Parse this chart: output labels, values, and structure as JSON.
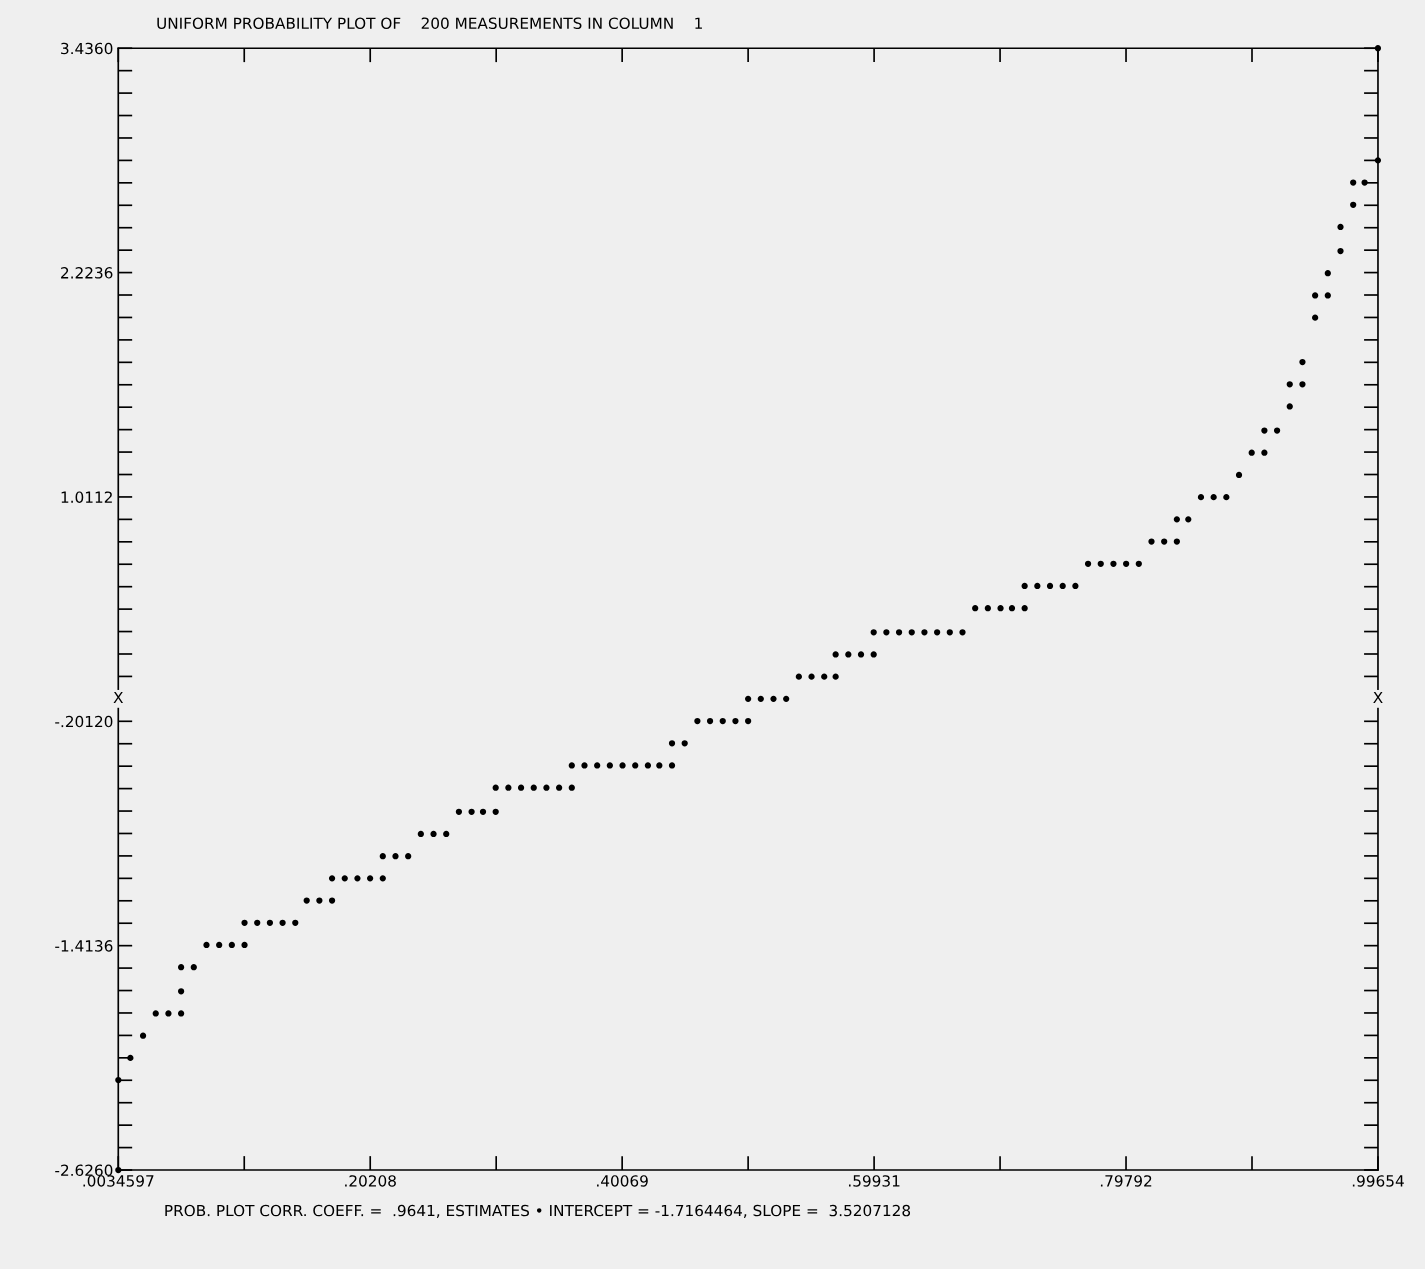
{
  "chart_data": {
    "type": "scatter",
    "title": "UNIFORM PROBABILITY PLOT OF    200 MEASUREMENTS IN COLUMN    1",
    "annotations": [
      "PROB. PLOT CORR. COEFF. =  .9641, ESTIMATES • INTERCEPT = -1.7164464, SLOPE =  3.5207128",
      {
        "text": "X",
        "x": 0.0034597,
        "y": -0.08
      },
      {
        "text": "X",
        "x": 0.99654,
        "y": -0.08
      }
    ],
    "marker": "circle",
    "grid": false,
    "xlim": [
      0.0034597,
      0.99654
    ],
    "ylim": [
      -2.626,
      3.436
    ],
    "xticks": [
      {
        "value": 0.0034597,
        "label": ".0034597"
      },
      {
        "value": 0.10277,
        "label": null
      },
      {
        "value": 0.20208,
        "label": ".20208"
      },
      {
        "value": 0.30139,
        "label": null
      },
      {
        "value": 0.40069,
        "label": ".40069"
      },
      {
        "value": 0.5,
        "label": null
      },
      {
        "value": 0.59931,
        "label": ".59931"
      },
      {
        "value": 0.69862,
        "label": null
      },
      {
        "value": 0.79792,
        "label": ".79792"
      },
      {
        "value": 0.89723,
        "label": null
      },
      {
        "value": 0.99654,
        "label": ".99654"
      }
    ],
    "yticks": [
      {
        "value": 3.436,
        "label": "3.4360"
      },
      {
        "value": 3.3148,
        "label": null
      },
      {
        "value": 3.1935,
        "label": null
      },
      {
        "value": 3.0723,
        "label": null
      },
      {
        "value": 2.951,
        "label": null
      },
      {
        "value": 2.8298,
        "label": null
      },
      {
        "value": 2.7086,
        "label": null
      },
      {
        "value": 2.5873,
        "label": null
      },
      {
        "value": 2.4661,
        "label": null
      },
      {
        "value": 2.3448,
        "label": null
      },
      {
        "value": 2.2236,
        "label": "2.2236"
      },
      {
        "value": 2.1024,
        "label": null
      },
      {
        "value": 1.9811,
        "label": null
      },
      {
        "value": 1.8599,
        "label": null
      },
      {
        "value": 1.7386,
        "label": null
      },
      {
        "value": 1.6174,
        "label": null
      },
      {
        "value": 1.4962,
        "label": null
      },
      {
        "value": 1.3749,
        "label": null
      },
      {
        "value": 1.2537,
        "label": null
      },
      {
        "value": 1.1324,
        "label": null
      },
      {
        "value": 1.0112,
        "label": "1.0112"
      },
      {
        "value": 0.89,
        "label": null
      },
      {
        "value": 0.7687,
        "label": null
      },
      {
        "value": 0.6475,
        "label": null
      },
      {
        "value": 0.5262,
        "label": null
      },
      {
        "value": 0.405,
        "label": null
      },
      {
        "value": 0.2838,
        "label": null
      },
      {
        "value": 0.1625,
        "label": null
      },
      {
        "value": 0.0413,
        "label": null
      },
      {
        "value": -0.2012,
        "label": "-.20120"
      },
      {
        "value": -0.3224,
        "label": null
      },
      {
        "value": -0.4437,
        "label": null
      },
      {
        "value": -0.5649,
        "label": null
      },
      {
        "value": -0.6862,
        "label": null
      },
      {
        "value": -0.8074,
        "label": null
      },
      {
        "value": -0.9286,
        "label": null
      },
      {
        "value": -1.0499,
        "label": null
      },
      {
        "value": -1.1711,
        "label": null
      },
      {
        "value": -1.2924,
        "label": null
      },
      {
        "value": -1.4136,
        "label": "-1.4136"
      },
      {
        "value": -1.5348,
        "label": null
      },
      {
        "value": -1.6561,
        "label": null
      },
      {
        "value": -1.7773,
        "label": null
      },
      {
        "value": -1.8986,
        "label": null
      },
      {
        "value": -2.0198,
        "label": null
      },
      {
        "value": -2.141,
        "label": null
      },
      {
        "value": -2.2623,
        "label": null
      },
      {
        "value": -2.3835,
        "label": null
      },
      {
        "value": -2.5048,
        "label": null
      },
      {
        "value": -2.626,
        "label": "-2.6260"
      }
    ],
    "series": [
      {
        "color": "#000000",
        "x": [
          0.0035,
          0.0035,
          0.013,
          0.023,
          0.033,
          0.043,
          0.053,
          0.053,
          0.053,
          0.063,
          0.073,
          0.083,
          0.093,
          0.103,
          0.103,
          0.113,
          0.123,
          0.133,
          0.143,
          0.152,
          0.162,
          0.172,
          0.172,
          0.182,
          0.192,
          0.202,
          0.212,
          0.212,
          0.222,
          0.232,
          0.242,
          0.252,
          0.262,
          0.272,
          0.282,
          0.291,
          0.301,
          0.301,
          0.311,
          0.321,
          0.331,
          0.341,
          0.351,
          0.361,
          0.361,
          0.371,
          0.381,
          0.391,
          0.401,
          0.411,
          0.421,
          0.43,
          0.44,
          0.44,
          0.45,
          0.46,
          0.47,
          0.48,
          0.49,
          0.5,
          0.5,
          0.51,
          0.52,
          0.53,
          0.54,
          0.55,
          0.56,
          0.569,
          0.569,
          0.579,
          0.589,
          0.599,
          0.599,
          0.609,
          0.619,
          0.629,
          0.639,
          0.649,
          0.659,
          0.669,
          0.679,
          0.689,
          0.699,
          0.708,
          0.718,
          0.718,
          0.728,
          0.738,
          0.748,
          0.758,
          0.768,
          0.778,
          0.788,
          0.798,
          0.808,
          0.818,
          0.828,
          0.838,
          0.838,
          0.847,
          0.857,
          0.867,
          0.877,
          0.887,
          0.897,
          0.907,
          0.907,
          0.917,
          0.927,
          0.927,
          0.937,
          0.937,
          0.947,
          0.947,
          0.957,
          0.957,
          0.967,
          0.967,
          0.977,
          0.977,
          0.986,
          0.9965,
          0.9965
        ],
        "values": [
          -2.626,
          -2.14,
          -2.02,
          -1.9,
          -1.78,
          -1.78,
          -1.78,
          -1.66,
          -1.53,
          -1.53,
          -1.41,
          -1.41,
          -1.41,
          -1.41,
          -1.29,
          -1.29,
          -1.29,
          -1.29,
          -1.29,
          -1.17,
          -1.17,
          -1.17,
          -1.05,
          -1.05,
          -1.05,
          -1.05,
          -1.05,
          -0.93,
          -0.93,
          -0.93,
          -0.81,
          -0.81,
          -0.81,
          -0.69,
          -0.69,
          -0.69,
          -0.69,
          -0.56,
          -0.56,
          -0.56,
          -0.56,
          -0.56,
          -0.56,
          -0.56,
          -0.44,
          -0.44,
          -0.44,
          -0.44,
          -0.44,
          -0.44,
          -0.44,
          -0.44,
          -0.44,
          -0.32,
          -0.32,
          -0.2,
          -0.2,
          -0.2,
          -0.2,
          -0.2,
          -0.08,
          -0.08,
          -0.08,
          -0.08,
          0.04,
          0.04,
          0.04,
          0.04,
          0.16,
          0.16,
          0.16,
          0.16,
          0.28,
          0.28,
          0.28,
          0.28,
          0.28,
          0.28,
          0.28,
          0.28,
          0.41,
          0.41,
          0.41,
          0.41,
          0.41,
          0.53,
          0.53,
          0.53,
          0.53,
          0.53,
          0.65,
          0.65,
          0.65,
          0.65,
          0.65,
          0.77,
          0.77,
          0.77,
          0.89,
          0.89,
          1.01,
          1.01,
          1.01,
          1.13,
          1.25,
          1.25,
          1.37,
          1.37,
          1.5,
          1.62,
          1.62,
          1.74,
          1.98,
          2.1,
          2.1,
          2.22,
          2.34,
          2.47,
          2.59,
          2.71,
          2.71,
          2.83,
          3.436
        ]
      }
    ]
  }
}
